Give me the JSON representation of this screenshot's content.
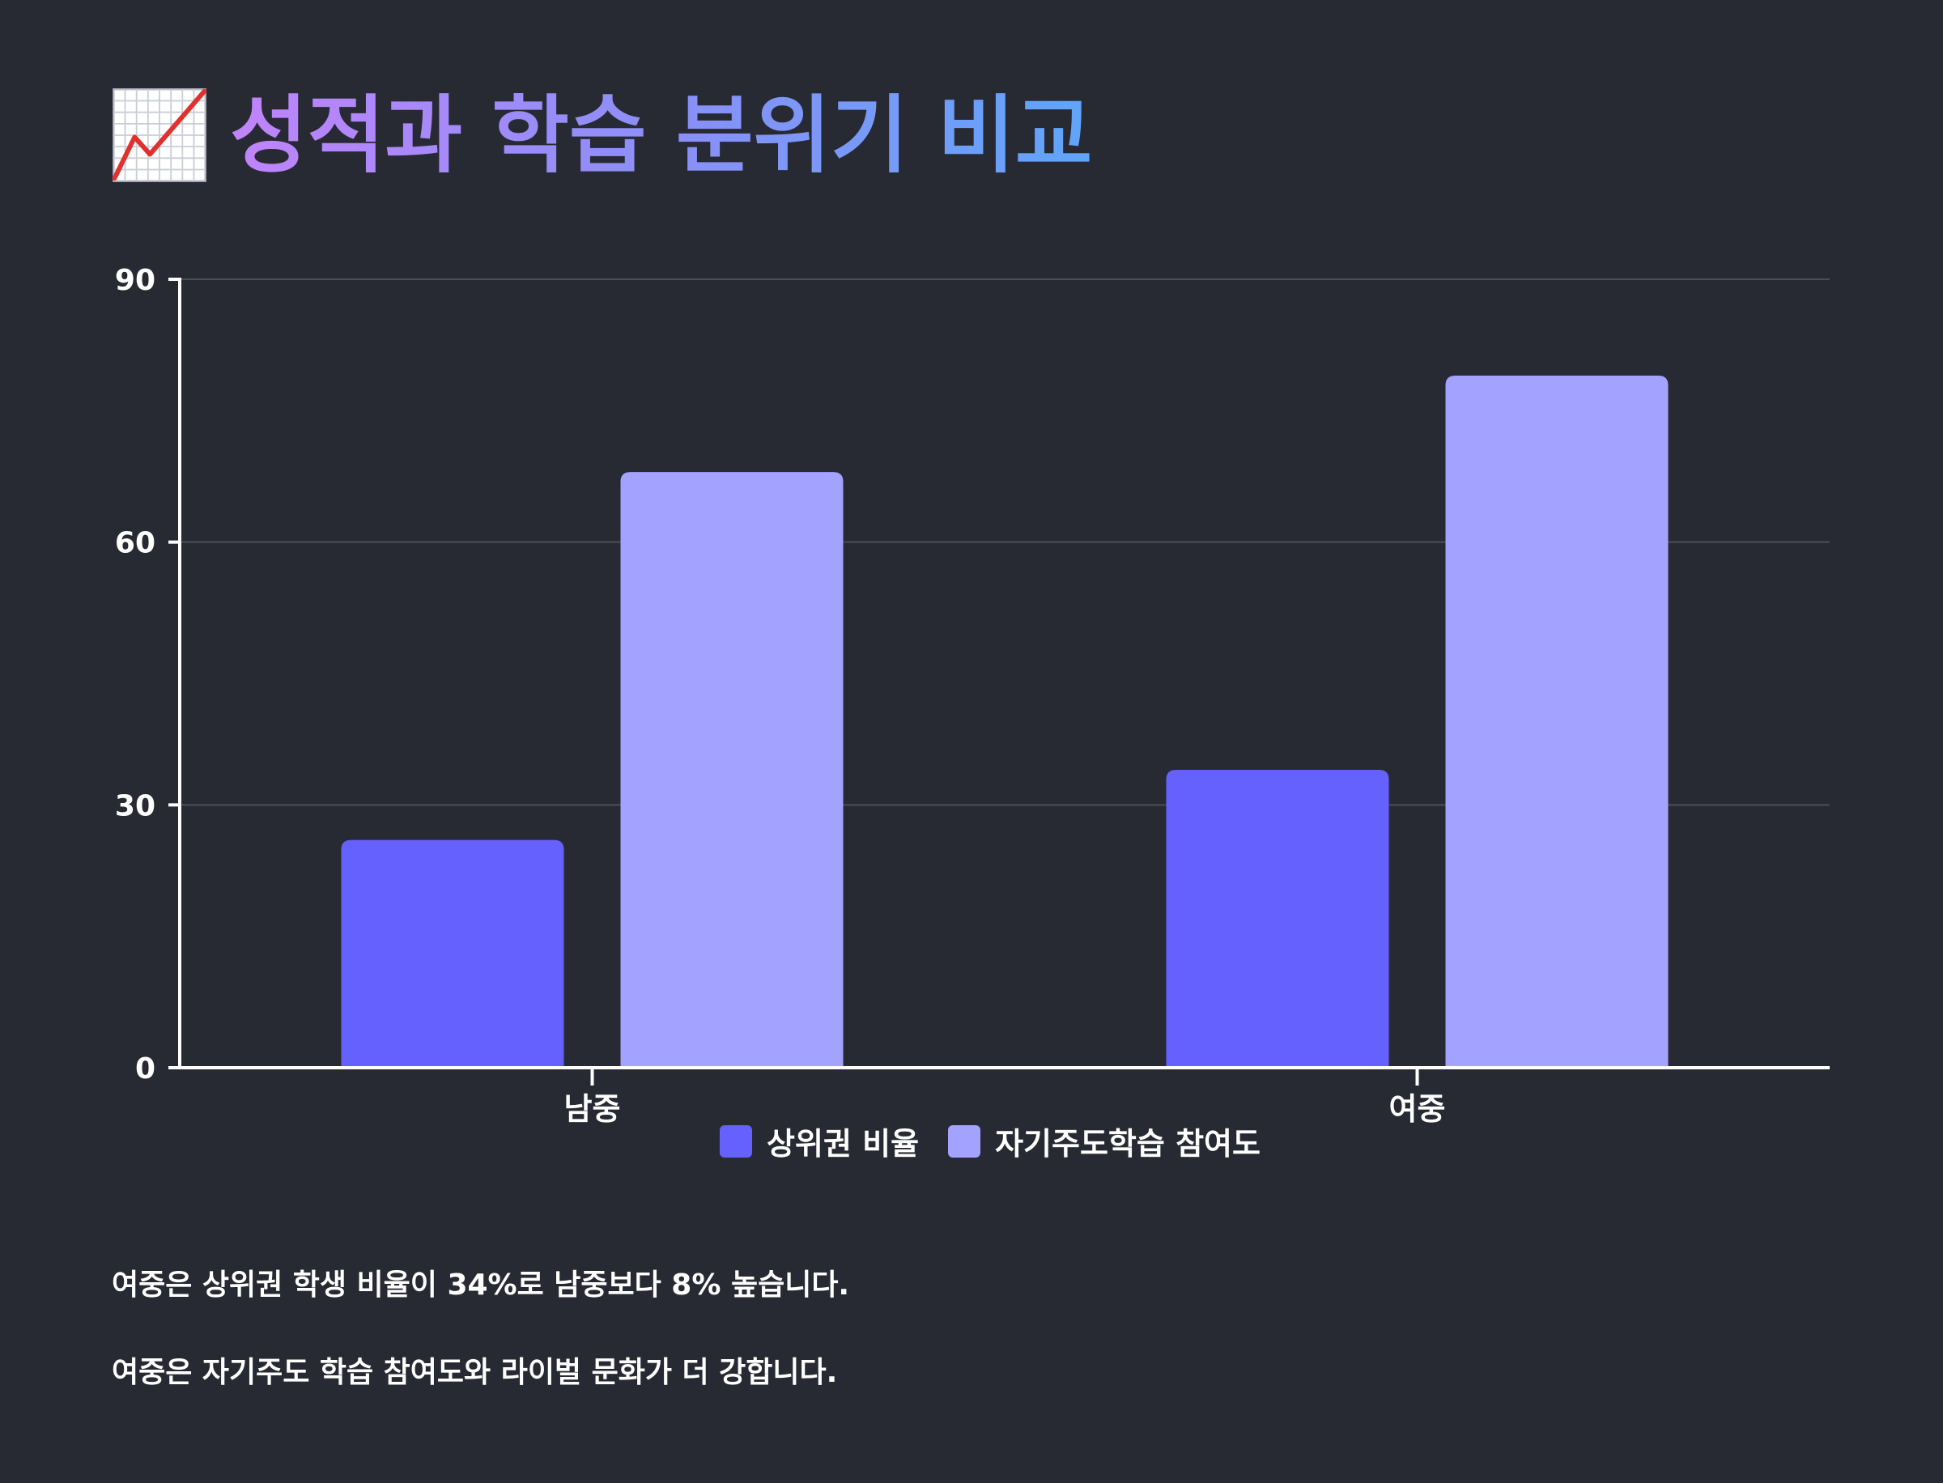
{
  "header": {
    "title": "성적과 학습 분위기 비교",
    "title_icon": "chart-increasing-icon"
  },
  "colors": {
    "background": "#282a33",
    "series_1": "#6461ff",
    "series_2": "#a3a2ff",
    "gridline": "#4b4d58",
    "axis": "#ffffff",
    "title_gradient": [
      "#c084fc",
      "#60a5fa"
    ]
  },
  "chart_data": {
    "type": "bar",
    "categories": [
      "남중",
      "여중"
    ],
    "series": [
      {
        "name": "상위권 비율",
        "values": [
          26,
          34
        ]
      },
      {
        "name": "자기주도학습 참여도",
        "values": [
          68,
          79
        ]
      }
    ],
    "ylim": [
      0,
      90
    ],
    "yticks": [
      0,
      30,
      60,
      90
    ],
    "ytick_labels": [
      "0",
      "30",
      "60",
      "90"
    ],
    "grid": true,
    "legend_position": "bottom"
  },
  "notes": {
    "line1_prefix": "여중은 상위권 학생 비율이 ",
    "line1_value1": "34%",
    "line1_mid": "로 남중보다 ",
    "line1_value2": "8%",
    "line1_suffix": " 높습니다.",
    "line2": "여중은 자기주도 학습 참여도와 라이벌 문화가 더 강합니다."
  }
}
